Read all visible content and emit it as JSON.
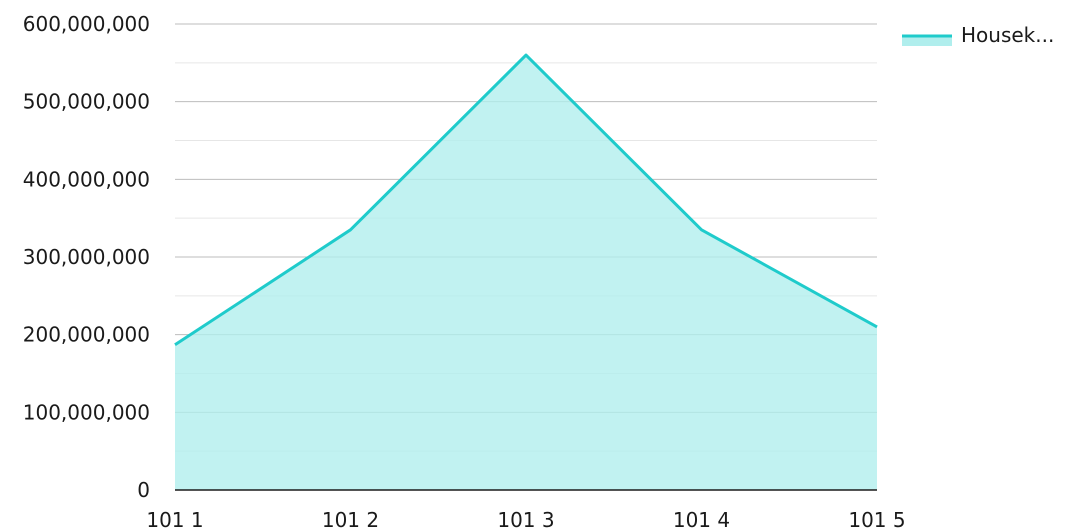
{
  "chart_data": {
    "type": "area",
    "categories": [
      "101 1",
      "101 2",
      "101 3",
      "101 4",
      "101 5"
    ],
    "series": [
      {
        "name": "Housek...",
        "values": [
          187000000,
          335000000,
          560000000,
          335000000,
          210000000
        ]
      }
    ],
    "y_ticks": [
      "0",
      "100,000,000",
      "200,000,000",
      "300,000,000",
      "400,000,000",
      "500,000,000",
      "600,000,000"
    ],
    "ylim": [
      0,
      600000000
    ],
    "grid": true,
    "legend_position": "top-right",
    "colors": {
      "line": "#1fcbcb",
      "fill": "#b0eeed",
      "grid_major": "#bdbdbd",
      "grid_minor": "#e6e6e6",
      "axis": "#1a1a1a"
    }
  }
}
